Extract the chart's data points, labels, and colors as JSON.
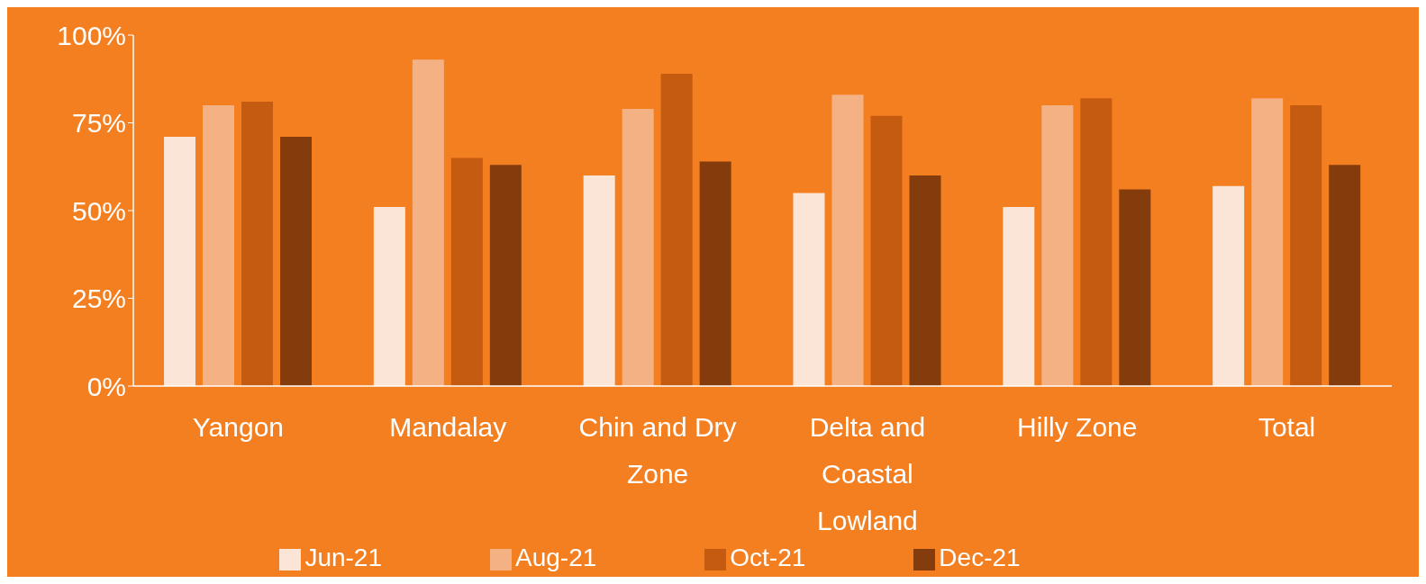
{
  "chart_data": {
    "type": "bar",
    "categories": [
      "Yangon",
      "Mandalay",
      "Chin and Dry Zone",
      "Delta and Coastal Lowland",
      "Hilly Zone",
      "Total"
    ],
    "series": [
      {
        "name": "Jun-21",
        "color": "#fbe5d6",
        "values": [
          71,
          51,
          60,
          55,
          51,
          57
        ]
      },
      {
        "name": "Aug-21",
        "color": "#f4b183",
        "values": [
          80,
          93,
          79,
          83,
          80,
          82
        ]
      },
      {
        "name": "Oct-21",
        "color": "#c55a11",
        "values": [
          81,
          65,
          89,
          77,
          82,
          80
        ]
      },
      {
        "name": "Dec-21",
        "color": "#843c0c",
        "values": [
          71,
          63,
          64,
          60,
          56,
          63
        ]
      }
    ],
    "ylim": [
      0,
      100
    ],
    "yticks": [
      {
        "value": 0,
        "label": "0%"
      },
      {
        "value": 25,
        "label": "25%"
      },
      {
        "value": 50,
        "label": "50%"
      },
      {
        "value": 75,
        "label": "75%"
      },
      {
        "value": 100,
        "label": "100%"
      }
    ],
    "grid": false,
    "legend": "bottom"
  }
}
